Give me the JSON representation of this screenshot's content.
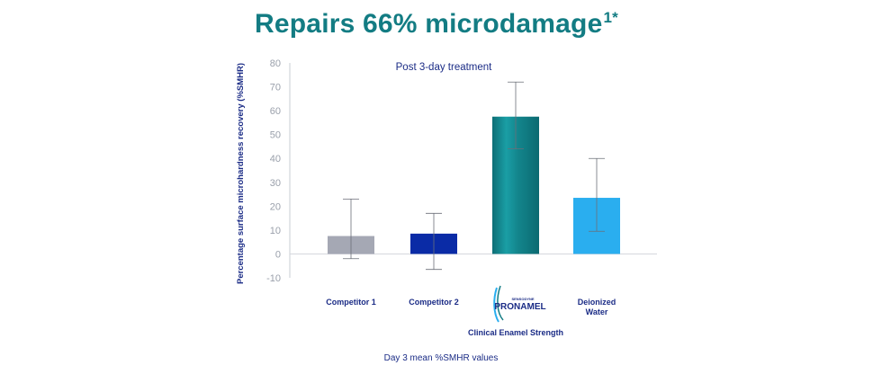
{
  "headline": {
    "text": "Repairs 66% microdamage",
    "superscript": "1*"
  },
  "chart_data": {
    "type": "bar",
    "title": "Post 3-day treatment",
    "ylabel": "Percentage surface microhardness recovery (%SMHR)",
    "xlabel": "Day 3 mean %SMHR values",
    "ylim": [
      -10,
      80
    ],
    "yticks": [
      80,
      70,
      60,
      50,
      40,
      30,
      20,
      10,
      0,
      -10
    ],
    "categories": [
      "Competitor 1",
      "Competitor 2",
      "Clinical Enamel Strength",
      "Deionized Water"
    ],
    "values": [
      7.5,
      8.5,
      57.5,
      23.5
    ],
    "error_low": [
      -2,
      -6.5,
      44,
      9.5
    ],
    "error_high": [
      23,
      17,
      72,
      40
    ],
    "colors": [
      "#a5a8b4",
      "#0a2ba6",
      "#12858c",
      "#2aaeef"
    ],
    "grid": false,
    "legend": "none"
  },
  "logo": {
    "small_text": "SENSODYNE",
    "big_text": "PRONAMEL",
    "icon": "pronamel-tooth-logo-icon"
  },
  "colors": {
    "headline": "#137c83",
    "text": "#1b2c86",
    "axis": "#c9ccd3"
  }
}
